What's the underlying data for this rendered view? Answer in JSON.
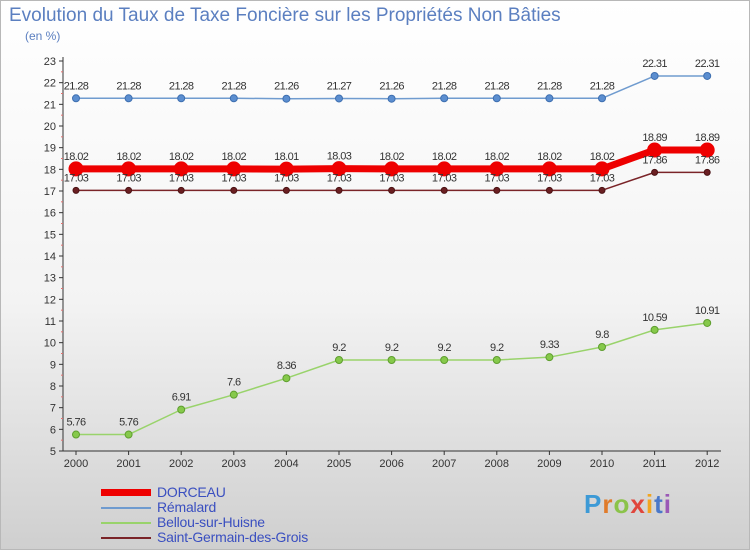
{
  "chart_data": {
    "type": "line",
    "title": "Evolution du Taux de Taxe Foncière sur les Propriétés Non Bâties",
    "subtitle": "(en %)",
    "categories": [
      "2000",
      "2001",
      "2002",
      "2003",
      "2004",
      "2005",
      "2006",
      "2007",
      "2008",
      "2009",
      "2010",
      "2011",
      "2012"
    ],
    "ylim": [
      5,
      23
    ],
    "yticks": [
      "5",
      "6",
      "7",
      "8",
      "9",
      "10",
      "11",
      "12",
      "13",
      "14",
      "15",
      "16",
      "17",
      "18",
      "19",
      "20",
      "21",
      "22",
      "23"
    ],
    "grid": false,
    "series": [
      {
        "name": "DORCEAU",
        "color": "#ee0000",
        "values": [
          18.02,
          18.02,
          18.02,
          18.02,
          18.01,
          18.03,
          18.02,
          18.02,
          18.02,
          18.02,
          18.02,
          18.89,
          18.89
        ],
        "labels": [
          "18.02",
          "18.02",
          "18.02",
          "18.02",
          "18.01",
          "18.03",
          "18.02",
          "18.02",
          "18.02",
          "18.02",
          "18.02",
          "18.89",
          "18.89"
        ]
      },
      {
        "name": "Rémalard",
        "color": "#6f9bcf",
        "values": [
          21.28,
          21.28,
          21.28,
          21.28,
          21.26,
          21.27,
          21.26,
          21.28,
          21.28,
          21.28,
          21.28,
          22.31,
          22.31
        ],
        "labels": [
          "21.28",
          "21.28",
          "21.28",
          "21.28",
          "21.26",
          "21.27",
          "21.26",
          "21.28",
          "21.28",
          "21.28",
          "21.28",
          "22.31",
          "22.31"
        ]
      },
      {
        "name": "Bellou-sur-Huisne",
        "color": "#99d36b",
        "values": [
          5.76,
          5.76,
          6.91,
          7.6,
          8.36,
          9.2,
          9.2,
          9.2,
          9.2,
          9.33,
          9.8,
          10.59,
          10.91
        ],
        "labels": [
          "5.76",
          "5.76",
          "6.91",
          "7.6",
          "8.36",
          "9.2",
          "9.2",
          "9.2",
          "9.2",
          "9.33",
          "9.8",
          "10.59",
          "10.91"
        ]
      },
      {
        "name": "Saint-Germain-des-Grois",
        "color": "#7a2428",
        "values": [
          17.03,
          17.03,
          17.03,
          17.03,
          17.03,
          17.03,
          17.03,
          17.03,
          17.03,
          17.03,
          17.03,
          17.86,
          17.86
        ],
        "labels": [
          "17.03",
          "17.03",
          "17.03",
          "17.03",
          "17.03",
          "17.03",
          "17.03",
          "17.03",
          "17.03",
          "17.03",
          "17.03",
          "17.86",
          "17.86"
        ]
      }
    ]
  },
  "legend": {
    "items": [
      "DORCEAU",
      "Rémalard",
      "Bellou-sur-Huisne",
      "Saint-Germain-des-Grois"
    ],
    "position": "bottom-left"
  },
  "logo": {
    "letters": [
      "P",
      "r",
      "o",
      "x",
      "i",
      "t",
      "i"
    ],
    "colors": [
      "#3d9ad6",
      "#e07b2a",
      "#8bc34a",
      "#e0463c",
      "#f2a51f",
      "#4a78c9",
      "#9b59b6"
    ]
  }
}
